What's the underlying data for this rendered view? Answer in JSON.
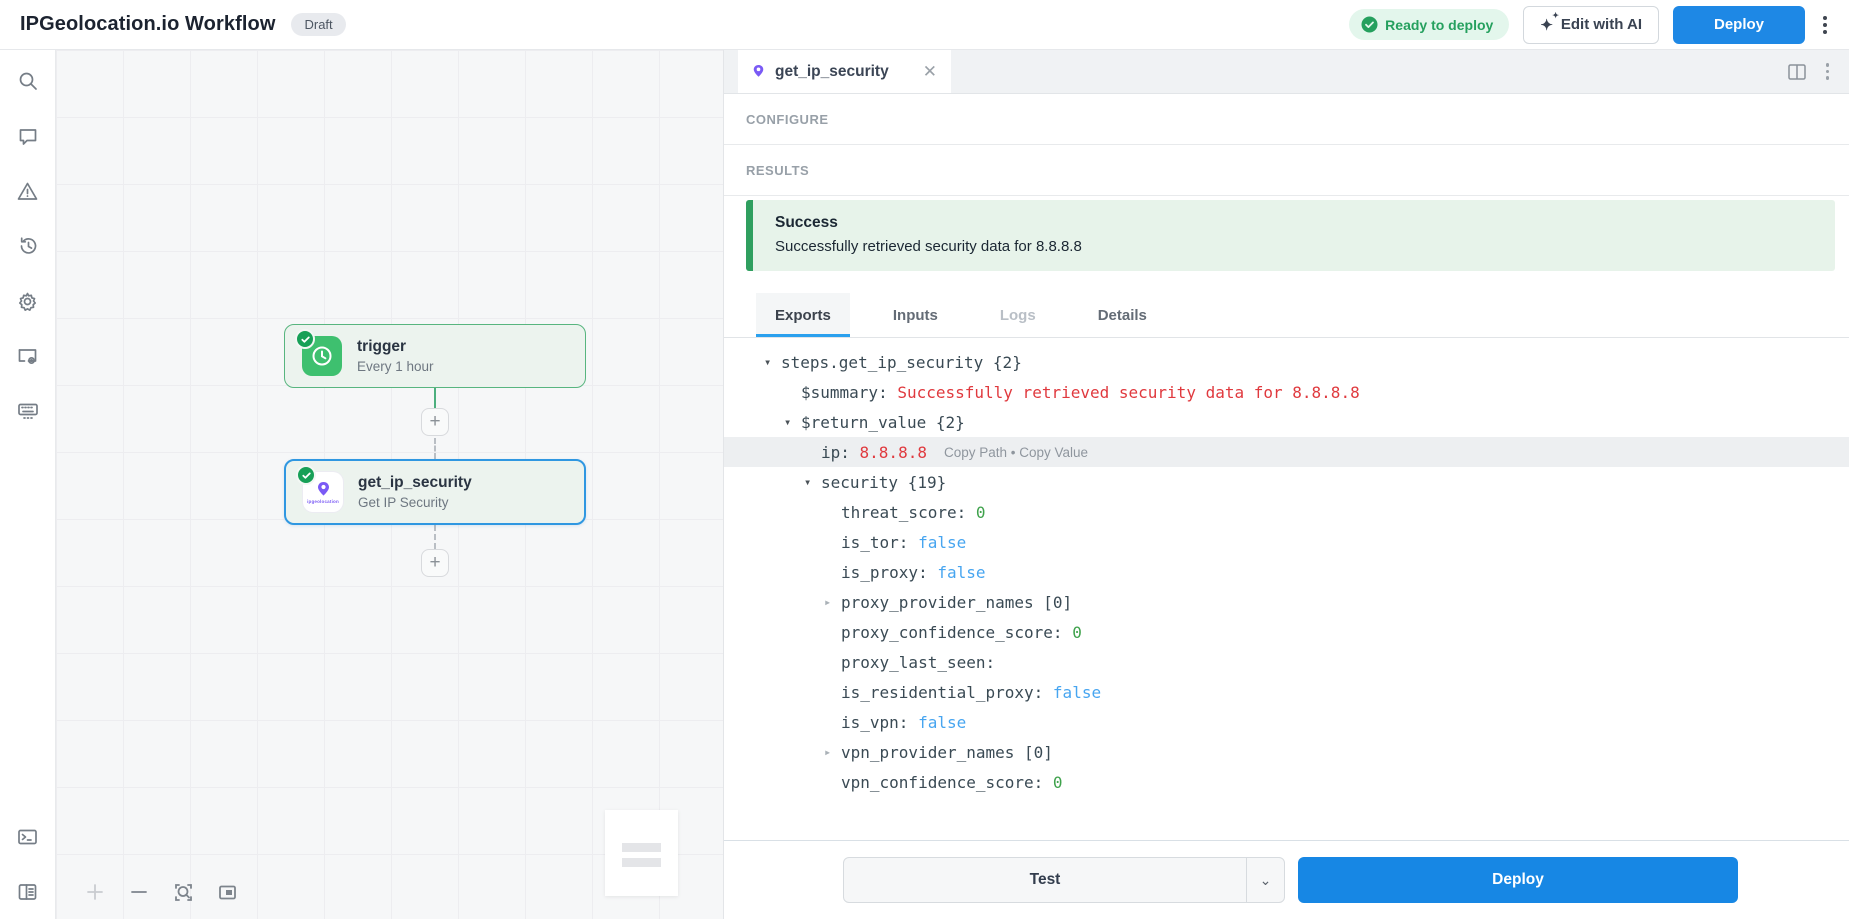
{
  "header": {
    "title": "IPGeolocation.io Workflow",
    "badge": "Draft",
    "status_pill": "Ready to deploy",
    "edit_ai_label": "Edit with AI",
    "deploy_label": "Deploy"
  },
  "sidebar": {
    "icons": [
      "search",
      "comment",
      "warning",
      "history",
      "settings",
      "window-settings",
      "keyboard",
      "terminal",
      "docs-panel"
    ]
  },
  "canvas": {
    "nodes": [
      {
        "title": "trigger",
        "subtitle": "Every 1 hour",
        "state": "success"
      },
      {
        "title": "get_ip_security",
        "subtitle": "Get IP Security",
        "state": "selected",
        "brand": "ipgeolocation"
      }
    ]
  },
  "panel": {
    "tab": {
      "label": "get_ip_security"
    },
    "configure_label": "CONFIGURE",
    "results_label": "RESULTS",
    "banner": {
      "title": "Success",
      "message": "Successfully retrieved security data for 8.8.8.8"
    },
    "tabs": [
      {
        "label": "Exports",
        "state": "active"
      },
      {
        "label": "Inputs",
        "state": "normal"
      },
      {
        "label": "Logs",
        "state": "disabled"
      },
      {
        "label": "Details",
        "state": "normal"
      }
    ],
    "tree": [
      {
        "level": 0,
        "caret": "open",
        "key": "steps.get_ip_security",
        "meta": "{2}"
      },
      {
        "level": 1,
        "key": "$summary: ",
        "value": "Successfully retrieved security data for 8.8.8.8",
        "vtype": "string"
      },
      {
        "level": 1,
        "caret": "open",
        "key": "$return_value",
        "meta": "{2}"
      },
      {
        "level": 2,
        "key": "ip: ",
        "value": "8.8.8.8",
        "vtype": "string",
        "selected": true,
        "actions": "Copy Path • Copy Value"
      },
      {
        "level": 2,
        "caret": "open",
        "key": "security",
        "meta": "{19}"
      },
      {
        "level": 3,
        "key": "threat_score: ",
        "value": "0",
        "vtype": "number"
      },
      {
        "level": 3,
        "key": "is_tor: ",
        "value": "false",
        "vtype": "bool"
      },
      {
        "level": 3,
        "key": "is_proxy: ",
        "value": "false",
        "vtype": "bool"
      },
      {
        "level": 3,
        "caret": "closed",
        "key": "proxy_provider_names",
        "meta": "[0]"
      },
      {
        "level": 3,
        "key": "proxy_confidence_score: ",
        "value": "0",
        "vtype": "number"
      },
      {
        "level": 3,
        "key": "proxy_last_seen: ",
        "value": "",
        "vtype": "none"
      },
      {
        "level": 3,
        "key": "is_residential_proxy: ",
        "value": "false",
        "vtype": "bool"
      },
      {
        "level": 3,
        "key": "is_vpn: ",
        "value": "false",
        "vtype": "bool"
      },
      {
        "level": 3,
        "caret": "closed",
        "key": "vpn_provider_names",
        "meta": "[0]"
      },
      {
        "level": 3,
        "key": "vpn_confidence_score: ",
        "value": "0",
        "vtype": "number"
      }
    ],
    "footer": {
      "test_label": "Test",
      "deploy_label": "Deploy"
    }
  },
  "colors": {
    "accent_blue": "#1e88e5",
    "success_green": "#2f9f5f",
    "node_border_green": "#58b57f",
    "selected_border_blue": "#2f97e1",
    "value_red": "#e0393e",
    "value_blue": "#47a5f0",
    "value_green": "#3fa24c",
    "brand_purple": "#7a5af5"
  }
}
